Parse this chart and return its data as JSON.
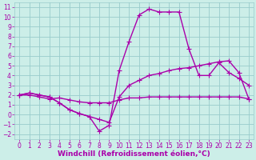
{
  "bg_color": "#cceee8",
  "grid_color": "#99cccc",
  "line_color": "#aa00aa",
  "marker": "+",
  "markersize": 4,
  "linewidth": 1.0,
  "xlabel": "Windchill (Refroidissement éolien,°C)",
  "xlabel_fontsize": 6.5,
  "xlim": [
    -0.5,
    23.5
  ],
  "ylim": [
    -2.5,
    11.5
  ],
  "xticks": [
    0,
    1,
    2,
    3,
    4,
    5,
    6,
    7,
    8,
    9,
    10,
    11,
    12,
    13,
    14,
    15,
    16,
    17,
    18,
    19,
    20,
    21,
    22,
    23
  ],
  "yticks": [
    -2,
    -1,
    0,
    1,
    2,
    3,
    4,
    5,
    6,
    7,
    8,
    9,
    10,
    11
  ],
  "tick_fontsize": 5.5,
  "series": [
    {
      "x": [
        0,
        1,
        2,
        3,
        4,
        5,
        6,
        7,
        8,
        9,
        10,
        11,
        12,
        13,
        14,
        15,
        16,
        17,
        18,
        19,
        20,
        21,
        22,
        23
      ],
      "y": [
        2.0,
        2.2,
        2.0,
        1.8,
        1.2,
        0.5,
        0.1,
        -0.2,
        -1.7,
        -1.1,
        4.5,
        7.5,
        10.2,
        10.8,
        10.5,
        10.5,
        10.5,
        6.7,
        4.0,
        4.0,
        5.3,
        4.3,
        3.7,
        3.0
      ]
    },
    {
      "x": [
        0,
        1,
        2,
        3,
        4,
        5,
        6,
        7,
        8,
        9,
        10,
        11,
        12,
        13,
        14,
        15,
        16,
        17,
        18,
        19,
        20,
        21,
        22,
        23
      ],
      "y": [
        2.0,
        2.2,
        2.0,
        1.8,
        1.2,
        0.5,
        0.1,
        -0.2,
        -0.5,
        -0.8,
        1.8,
        3.0,
        3.5,
        4.0,
        4.2,
        4.5,
        4.7,
        4.8,
        5.0,
        5.2,
        5.4,
        5.5,
        4.3,
        1.6
      ]
    },
    {
      "x": [
        0,
        1,
        2,
        3,
        4,
        5,
        6,
        7,
        8,
        9,
        10,
        11,
        12,
        13,
        14,
        15,
        16,
        17,
        18,
        19,
        20,
        21,
        22,
        23
      ],
      "y": [
        2.0,
        2.0,
        1.8,
        1.6,
        1.7,
        1.5,
        1.3,
        1.2,
        1.2,
        1.2,
        1.5,
        1.7,
        1.7,
        1.8,
        1.8,
        1.8,
        1.8,
        1.8,
        1.8,
        1.8,
        1.8,
        1.8,
        1.8,
        1.6
      ]
    }
  ]
}
